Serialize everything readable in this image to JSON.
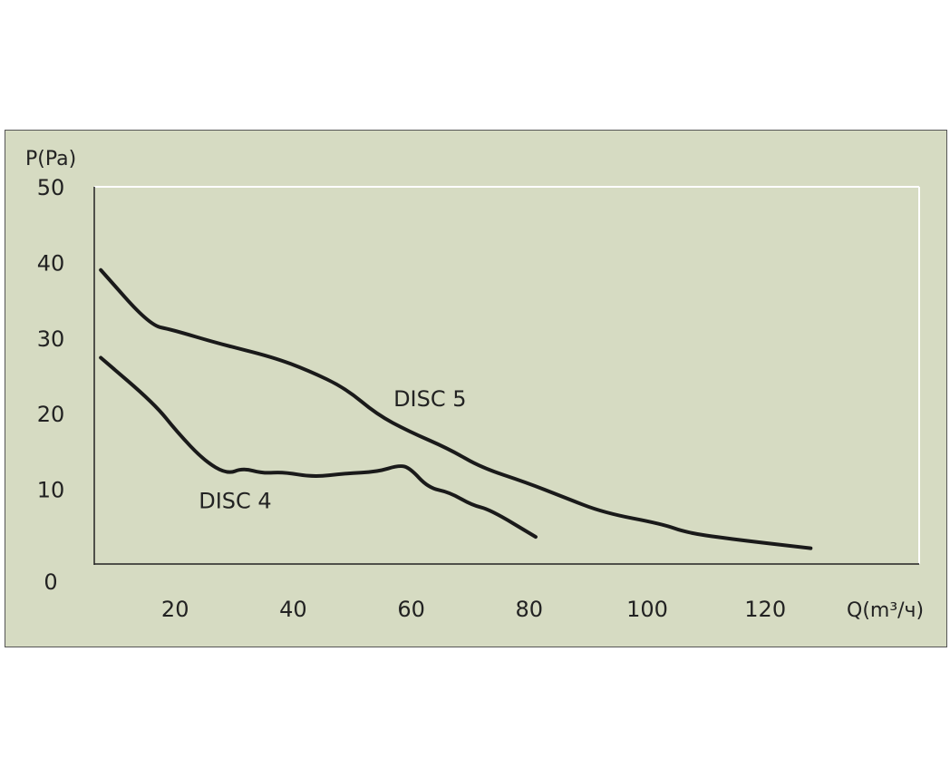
{
  "chart_data": {
    "type": "line",
    "title": "",
    "xlabel": "Q(m³/ч)",
    "ylabel": "P(Pa)",
    "xlim": [
      0,
      146
    ],
    "ylim": [
      0,
      50
    ],
    "x_ticks": [
      20,
      40,
      60,
      80,
      100,
      120
    ],
    "y_ticks": [
      0,
      10,
      20,
      30,
      40,
      50
    ],
    "grid": false,
    "background": "#d6dbc2",
    "line_color": "#1a1a1a",
    "series": [
      {
        "name": "DISC 5",
        "label_at": [
          57,
          21
        ],
        "points": [
          [
            7.4,
            39.0
          ],
          [
            15.7,
            31.7
          ],
          [
            19.5,
            31.1
          ],
          [
            27.2,
            29.3
          ],
          [
            36.5,
            27.5
          ],
          [
            42.6,
            25.7
          ],
          [
            48.8,
            23.4
          ],
          [
            54.2,
            19.9
          ],
          [
            59.5,
            17.7
          ],
          [
            66.5,
            15.3
          ],
          [
            71.8,
            12.9
          ],
          [
            79.5,
            10.9
          ],
          [
            85.7,
            9.0
          ],
          [
            92.6,
            6.9
          ],
          [
            102.6,
            5.4
          ],
          [
            106.5,
            4.3
          ],
          [
            113.4,
            3.5
          ],
          [
            127.7,
            2.2
          ]
        ]
      },
      {
        "name": "DISC 4",
        "label_at": [
          24,
          7.5
        ],
        "points": [
          [
            7.4,
            27.4
          ],
          [
            16.5,
            21.3
          ],
          [
            20.3,
            17.6
          ],
          [
            24.9,
            13.8
          ],
          [
            28.8,
            12.0
          ],
          [
            31.5,
            12.8
          ],
          [
            34.9,
            12.1
          ],
          [
            38.3,
            12.3
          ],
          [
            43.4,
            11.6
          ],
          [
            48.8,
            12.1
          ],
          [
            54.2,
            12.3
          ],
          [
            58.0,
            13.2
          ],
          [
            59.8,
            12.8
          ],
          [
            62.9,
            10.2
          ],
          [
            66.5,
            9.6
          ],
          [
            70.3,
            7.9
          ],
          [
            73.4,
            7.3
          ],
          [
            81.1,
            3.7
          ]
        ]
      }
    ]
  }
}
